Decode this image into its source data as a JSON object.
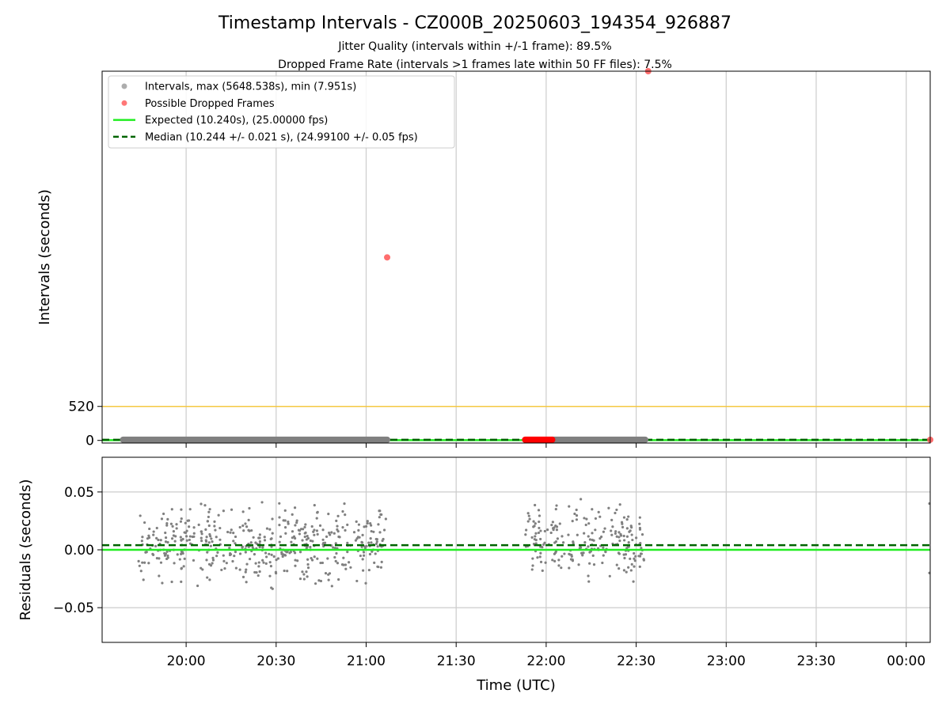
{
  "chart_data": [
    {
      "type": "scatter",
      "title": "Timestamp Intervals - CZ000B_20250603_194354_926887",
      "subtitle_lines": [
        "Jitter Quality (intervals within +/-1 frame): 89.5%",
        "Dropped Frame Rate (intervals >1 frames late within 50 FF files): 7.5%"
      ],
      "ylabel": "Intervals (seconds)",
      "ylim": [
        -40,
        5648.538
      ],
      "yticks": [
        0,
        520
      ],
      "threshold_line": 520,
      "expected_value": 10.24,
      "median_value": 10.244,
      "legend": {
        "placement": "upper-left",
        "entries": [
          {
            "label": "Intervals, max (5648.538s), min (7.951s)",
            "kind": "point",
            "color": "#999999"
          },
          {
            "label": "Possible Dropped Frames",
            "kind": "point",
            "color": "#ff5555"
          },
          {
            "label": "Expected (10.240s), (25.00000 fps)",
            "kind": "solid",
            "color": "#22ee22"
          },
          {
            "label": "Median (10.244 +/- 0.021 s), (24.99100 +/- 0.05 fps)",
            "kind": "dashed",
            "color": "#006400"
          }
        ]
      },
      "normal_bands": [
        [
          "19:39",
          "21:07"
        ],
        [
          "22:02",
          "22:33"
        ]
      ],
      "dropped_band": [
        "21:53",
        "22:02"
      ],
      "outliers": [
        {
          "x": "21:07",
          "y": 2800
        },
        {
          "x": "22:34",
          "y": 5648.538
        },
        {
          "x": "00:08",
          "y": 10.3
        }
      ]
    },
    {
      "type": "scatter",
      "xlabel": "Time (UTC)",
      "ylabel": "Residuals (seconds)",
      "xlim": [
        "19:32",
        "00:08"
      ],
      "xticks": [
        "20:00",
        "20:30",
        "21:00",
        "21:30",
        "22:00",
        "22:30",
        "23:00",
        "23:30",
        "00:00"
      ],
      "ylim": [
        -0.08,
        0.08
      ],
      "yticks": [
        "0.05",
        "0.00",
        "−0.05"
      ],
      "ytick_values": [
        0.05,
        0,
        -0.05
      ],
      "expected_residual": 0,
      "median_residual": 0.004,
      "clusters": [
        {
          "start": "19:44",
          "end": "21:07",
          "count": 480
        },
        {
          "start": "21:53",
          "end": "22:33",
          "count": 220
        }
      ],
      "edge_points": [
        {
          "x": "00:08",
          "y": 0.04
        },
        {
          "x": "00:08",
          "y": -0.02
        }
      ]
    }
  ],
  "colors": {
    "point_gray": "#808080",
    "dropped_red": "#ff0000",
    "expected_green": "#22ee22",
    "median_dark_green": "#006400",
    "threshold_orange": "#f5c842",
    "grid": "#cccccc"
  }
}
